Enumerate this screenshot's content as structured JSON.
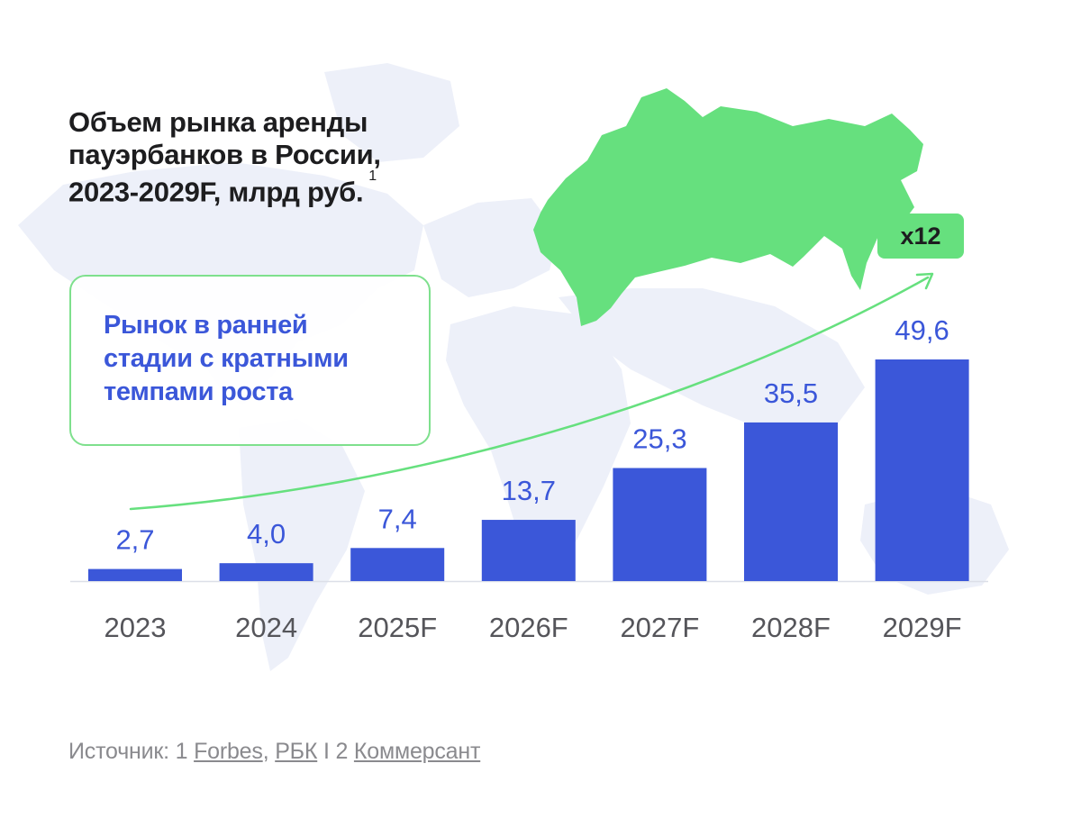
{
  "title": {
    "lines": [
      "Объем рынка аренды",
      "пауэрбанков в России,",
      "2023-2029F, млрд руб."
    ],
    "footnote": "1"
  },
  "callout": {
    "lines": [
      "Рынок в ранней",
      "стадии с кратными",
      "темпами роста"
    ]
  },
  "badge": "x12",
  "colors": {
    "bar": "#3b57d9",
    "value_label": "#3b57d9",
    "axis_label": "#55555a",
    "accent_green": "#66e07e",
    "map_gray": "#edf0f9",
    "title": "#1d1d1f"
  },
  "chart_data": {
    "type": "bar",
    "categories": [
      "2023",
      "2024",
      "2025F",
      "2026F",
      "2027F",
      "2028F",
      "2029F"
    ],
    "values": [
      2.7,
      4.0,
      7.4,
      13.7,
      25.3,
      35.5,
      49.6
    ],
    "value_labels": [
      "2,7",
      "4,0",
      "7,4",
      "13,7",
      "25,3",
      "35,5",
      "49,6"
    ],
    "ylim": [
      0,
      49.6
    ],
    "grid": false,
    "legend": "none",
    "annotation": "x12"
  },
  "source": {
    "prefix": "Источник: 1 ",
    "link1": "Forbes",
    "sep1": ", ",
    "link2": "РБК",
    "sep2": " I 2 ",
    "link3": "Коммерсант"
  }
}
